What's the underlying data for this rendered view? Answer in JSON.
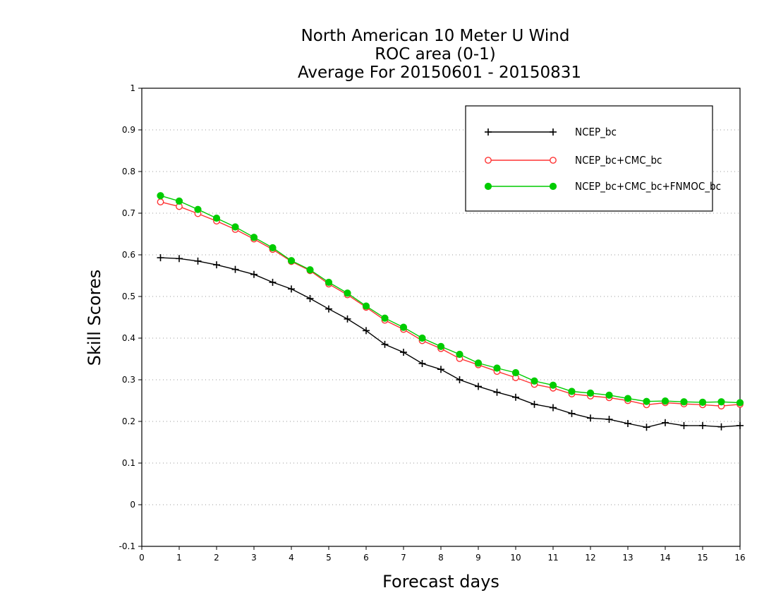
{
  "chart_data": {
    "type": "line",
    "title_lines": [
      "North American 10 Meter U Wind",
      "ROC area (0-1)",
      "Average For 20150601 - 20150831"
    ],
    "xlabel": "Forecast days",
    "ylabel": "Skill Scores",
    "xlim": [
      0,
      16
    ],
    "ylim": [
      -0.1,
      1
    ],
    "x_ticks": [
      0,
      1,
      2,
      3,
      4,
      5,
      6,
      7,
      8,
      9,
      10,
      11,
      12,
      13,
      14,
      15,
      16
    ],
    "y_ticks": [
      -0.1,
      0,
      0.1,
      0.2,
      0.3,
      0.4,
      0.5,
      0.6,
      0.7,
      0.8,
      0.9,
      1
    ],
    "y_tick_labels": [
      "-0.1",
      "0",
      "0.1",
      "0.2",
      "0.3",
      "0.4",
      "0.5",
      "0.6",
      "0.7",
      "0.8",
      "0.9",
      "1"
    ],
    "grid": "horizontal dotted",
    "legend_position": "top-right",
    "x": [
      0.5,
      1,
      1.5,
      2,
      2.5,
      3,
      3.5,
      4,
      4.5,
      5,
      5.5,
      6,
      6.5,
      7,
      7.5,
      8,
      8.5,
      9,
      9.5,
      10,
      10.5,
      11,
      11.5,
      12,
      12.5,
      13,
      13.5,
      14,
      14.5,
      15,
      15.5,
      16
    ],
    "series": [
      {
        "name": "NCEP_bc",
        "color": "#000000",
        "marker": "plus",
        "values": [
          0.593,
          0.591,
          0.585,
          0.576,
          0.565,
          0.553,
          0.534,
          0.518,
          0.495,
          0.47,
          0.446,
          0.418,
          0.385,
          0.366,
          0.339,
          0.325,
          0.3,
          0.284,
          0.27,
          0.258,
          0.241,
          0.233,
          0.219,
          0.208,
          0.205,
          0.195,
          0.186,
          0.197,
          0.19,
          0.19,
          0.187,
          0.19
        ]
      },
      {
        "name": "NCEP_bc+CMC_bc",
        "color": "#ff3333",
        "marker": "open-circle",
        "values": [
          0.727,
          0.716,
          0.699,
          0.681,
          0.661,
          0.638,
          0.613,
          0.584,
          0.562,
          0.53,
          0.504,
          0.474,
          0.443,
          0.421,
          0.394,
          0.375,
          0.351,
          0.336,
          0.32,
          0.305,
          0.289,
          0.28,
          0.266,
          0.261,
          0.257,
          0.25,
          0.24,
          0.245,
          0.242,
          0.24,
          0.237,
          0.241
        ]
      },
      {
        "name": "NCEP_bc+CMC_bc+FNMOC_bc",
        "color": "#00cc00",
        "marker": "filled-circle",
        "values": [
          0.742,
          0.729,
          0.709,
          0.688,
          0.667,
          0.642,
          0.617,
          0.586,
          0.564,
          0.534,
          0.508,
          0.477,
          0.448,
          0.426,
          0.4,
          0.38,
          0.361,
          0.34,
          0.328,
          0.317,
          0.297,
          0.287,
          0.272,
          0.268,
          0.263,
          0.255,
          0.248,
          0.249,
          0.247,
          0.246,
          0.247,
          0.245
        ]
      }
    ]
  }
}
